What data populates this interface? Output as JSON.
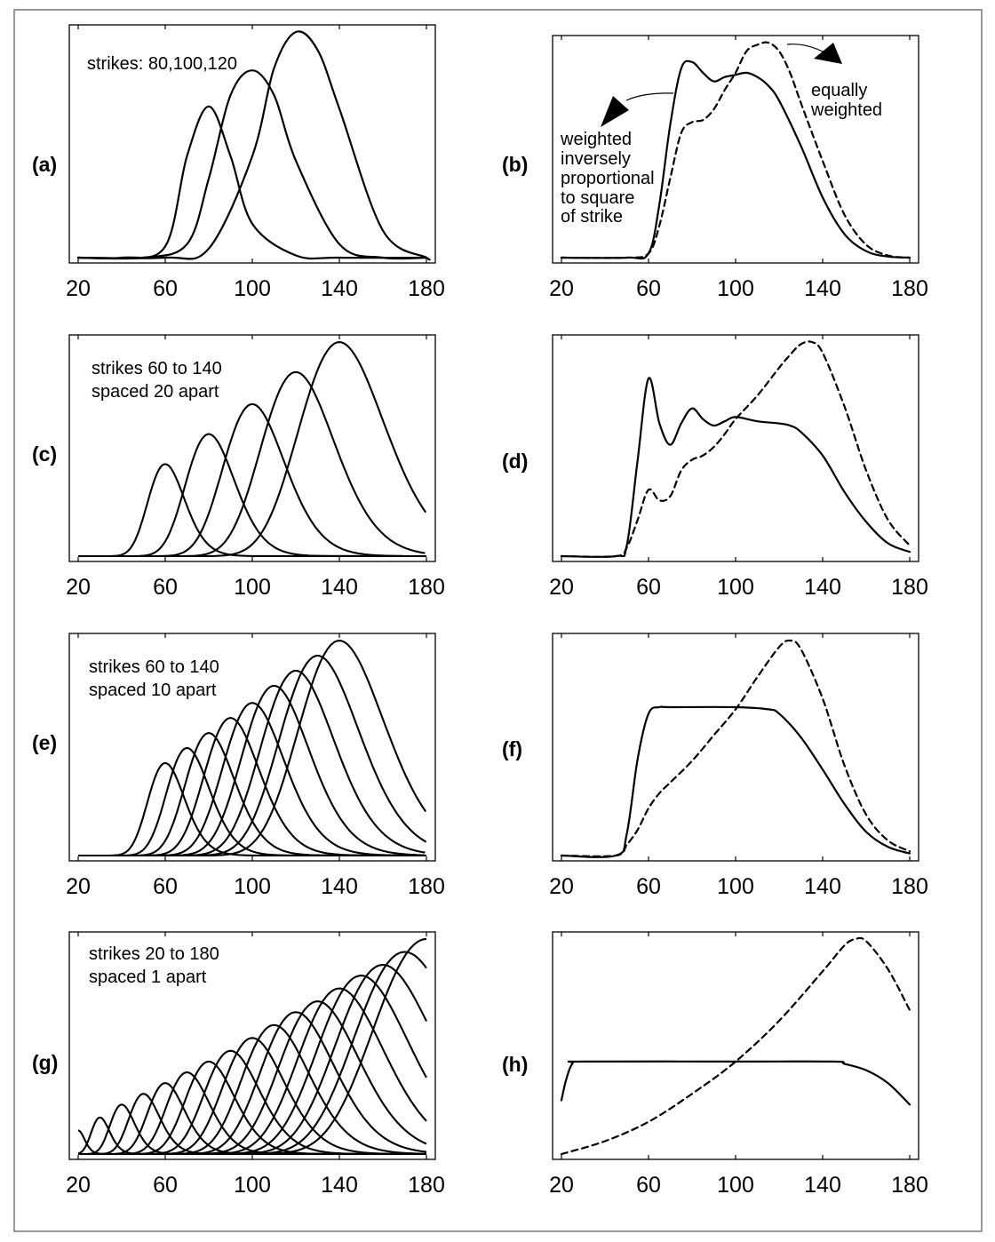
{
  "figure": {
    "x_ticks": [
      "20",
      "60",
      "100",
      "140",
      "180"
    ],
    "panel_labels": [
      "(a)",
      "(b)",
      "(c)",
      "(d)",
      "(e)",
      "(f)",
      "(g)",
      "(h)"
    ],
    "annotations": {
      "a": [
        "strikes: 80,100,120"
      ],
      "b_equal": [
        "equally",
        "weighted"
      ],
      "b_inverse": [
        "weighted",
        "inversely",
        "proportional",
        "to square",
        "of strike"
      ],
      "c": [
        "strikes 60 to 140",
        "spaced 20 apart"
      ],
      "e": [
        "strikes 60 to 140",
        "spaced 10 apart"
      ],
      "g": [
        "strikes 20 to 180",
        "spaced 1 apart"
      ]
    }
  },
  "chart_data": [
    {
      "panel": "(a)",
      "type": "line",
      "xlim": [
        20,
        180
      ],
      "xticks": [
        20,
        60,
        100,
        140,
        180
      ],
      "series_note": "one curve per strike",
      "strikes": [
        80,
        100,
        120
      ],
      "curves": [
        {
          "strike": 80,
          "x": [
            40,
            60,
            70,
            80,
            90,
            100,
            120,
            140
          ],
          "y": [
            0.0,
            0.05,
            0.45,
            0.67,
            0.45,
            0.15,
            0.01,
            0.0
          ]
        },
        {
          "strike": 100,
          "x": [
            50,
            70,
            80,
            90,
            100,
            110,
            120,
            140,
            160
          ],
          "y": [
            0.0,
            0.06,
            0.35,
            0.72,
            0.83,
            0.72,
            0.43,
            0.06,
            0.0
          ]
        },
        {
          "strike": 120,
          "x": [
            60,
            80,
            100,
            110,
            120,
            130,
            140,
            160,
            180
          ],
          "y": [
            0.0,
            0.04,
            0.45,
            0.84,
            1.0,
            0.92,
            0.66,
            0.12,
            0.0
          ]
        }
      ],
      "text": [
        "strikes: 80,100,120"
      ]
    },
    {
      "panel": "(b)",
      "type": "line",
      "xlim": [
        20,
        180
      ],
      "xticks": [
        20,
        60,
        100,
        140,
        180
      ],
      "series": [
        {
          "style": "solid",
          "label": "weighted inversely proportional to square of strike",
          "x": [
            20,
            50,
            60,
            65,
            70,
            75,
            80,
            85,
            90,
            95,
            100,
            105,
            110,
            115,
            120,
            130,
            140,
            150,
            160,
            170,
            180
          ],
          "y": [
            0.0,
            0.0,
            0.02,
            0.25,
            0.62,
            0.88,
            0.91,
            0.86,
            0.82,
            0.84,
            0.85,
            0.86,
            0.84,
            0.8,
            0.73,
            0.52,
            0.28,
            0.11,
            0.03,
            0.005,
            0.0
          ]
        },
        {
          "style": "dashed",
          "label": "equally weighted",
          "x": [
            20,
            50,
            60,
            65,
            70,
            75,
            80,
            85,
            90,
            95,
            100,
            105,
            110,
            115,
            120,
            125,
            130,
            140,
            150,
            160,
            170,
            180
          ],
          "y": [
            0.0,
            0.0,
            0.02,
            0.15,
            0.37,
            0.58,
            0.63,
            0.64,
            0.69,
            0.78,
            0.86,
            0.96,
            0.99,
            1.0,
            0.96,
            0.86,
            0.72,
            0.45,
            0.2,
            0.06,
            0.01,
            0.0
          ]
        }
      ],
      "text": [
        "equally weighted",
        "weighted inversely proportional to square of strike"
      ]
    },
    {
      "panel": "(c)",
      "type": "line",
      "xlim": [
        20,
        180
      ],
      "xticks": [
        20,
        60,
        100,
        140,
        180
      ],
      "strikes": [
        60,
        80,
        100,
        120,
        140
      ],
      "peaks": [
        0.43,
        0.57,
        0.71,
        0.86,
        1.0
      ],
      "text": [
        "strikes 60 to 140",
        "spaced 20 apart"
      ]
    },
    {
      "panel": "(d)",
      "type": "line",
      "xlim": [
        20,
        180
      ],
      "xticks": [
        20,
        60,
        100,
        140,
        180
      ],
      "series": [
        {
          "style": "solid",
          "x": [
            20,
            45,
            50,
            55,
            60,
            65,
            70,
            75,
            80,
            85,
            90,
            95,
            100,
            110,
            120,
            125,
            130,
            140,
            150,
            160,
            170,
            180
          ],
          "y": [
            0.0,
            0.0,
            0.05,
            0.45,
            0.83,
            0.62,
            0.52,
            0.62,
            0.69,
            0.64,
            0.61,
            0.63,
            0.65,
            0.63,
            0.62,
            0.61,
            0.58,
            0.47,
            0.3,
            0.16,
            0.06,
            0.02
          ]
        },
        {
          "style": "dashed",
          "x": [
            20,
            45,
            50,
            55,
            60,
            65,
            70,
            75,
            80,
            85,
            90,
            95,
            100,
            110,
            120,
            125,
            130,
            135,
            140,
            150,
            160,
            170,
            180
          ],
          "y": [
            0.0,
            0.0,
            0.04,
            0.17,
            0.31,
            0.26,
            0.28,
            0.4,
            0.45,
            0.47,
            0.51,
            0.57,
            0.64,
            0.75,
            0.88,
            0.94,
            0.99,
            1.0,
            0.95,
            0.7,
            0.4,
            0.17,
            0.05
          ]
        }
      ]
    },
    {
      "panel": "(e)",
      "type": "line",
      "xlim": [
        20,
        180
      ],
      "xticks": [
        20,
        60,
        100,
        140,
        180
      ],
      "strikes": [
        60,
        70,
        80,
        90,
        100,
        110,
        120,
        130,
        140
      ],
      "peaks": [
        0.43,
        0.5,
        0.57,
        0.64,
        0.71,
        0.79,
        0.86,
        0.93,
        1.0
      ],
      "text": [
        "strikes 60 to 140",
        "spaced 10 apart"
      ]
    },
    {
      "panel": "(f)",
      "type": "line",
      "xlim": [
        20,
        180
      ],
      "xticks": [
        20,
        60,
        100,
        140,
        180
      ],
      "series": [
        {
          "style": "solid",
          "x": [
            20,
            45,
            50,
            55,
            60,
            65,
            70,
            100,
            115,
            120,
            130,
            140,
            150,
            160,
            170,
            180
          ],
          "y": [
            0.0,
            0.0,
            0.1,
            0.45,
            0.66,
            0.69,
            0.69,
            0.69,
            0.68,
            0.66,
            0.55,
            0.4,
            0.24,
            0.11,
            0.04,
            0.01
          ]
        },
        {
          "style": "dashed",
          "x": [
            20,
            45,
            50,
            55,
            60,
            65,
            70,
            80,
            90,
            100,
            110,
            120,
            125,
            130,
            140,
            150,
            160,
            170,
            180
          ],
          "y": [
            0.0,
            0.0,
            0.05,
            0.12,
            0.22,
            0.29,
            0.34,
            0.44,
            0.56,
            0.68,
            0.83,
            0.97,
            1.0,
            0.96,
            0.73,
            0.42,
            0.19,
            0.07,
            0.02
          ]
        }
      ]
    },
    {
      "panel": "(g)",
      "type": "line",
      "xlim": [
        20,
        180
      ],
      "xticks": [
        20,
        60,
        100,
        140,
        180
      ],
      "strikes_range": [
        20,
        180
      ],
      "strike_spacing": 1,
      "visible_peaks": {
        "x": [
          20,
          30,
          40,
          50,
          60,
          70,
          80,
          90,
          100,
          110,
          120,
          130,
          140,
          150,
          160,
          170,
          180
        ],
        "y": [
          0.11,
          0.17,
          0.23,
          0.28,
          0.33,
          0.38,
          0.43,
          0.48,
          0.54,
          0.6,
          0.66,
          0.71,
          0.77,
          0.83,
          0.88,
          0.94,
          1.0
        ]
      },
      "text": [
        "strikes 20 to 180",
        "spaced 1 apart"
      ]
    },
    {
      "panel": "(h)",
      "type": "line",
      "xlim": [
        20,
        180
      ],
      "xticks": [
        20,
        60,
        100,
        140,
        180
      ],
      "series": [
        {
          "style": "solid",
          "x": [
            20,
            22,
            25,
            30,
            100,
            145,
            150,
            160,
            170,
            180
          ],
          "y": [
            0.25,
            0.34,
            0.42,
            0.43,
            0.43,
            0.43,
            0.42,
            0.39,
            0.33,
            0.23
          ]
        },
        {
          "style": "dashed",
          "x": [
            20,
            40,
            60,
            80,
            100,
            120,
            140,
            150,
            155,
            160,
            170,
            180
          ],
          "y": [
            0.0,
            0.06,
            0.15,
            0.28,
            0.43,
            0.62,
            0.85,
            0.97,
            1.0,
            0.99,
            0.86,
            0.67
          ]
        }
      ]
    }
  ]
}
